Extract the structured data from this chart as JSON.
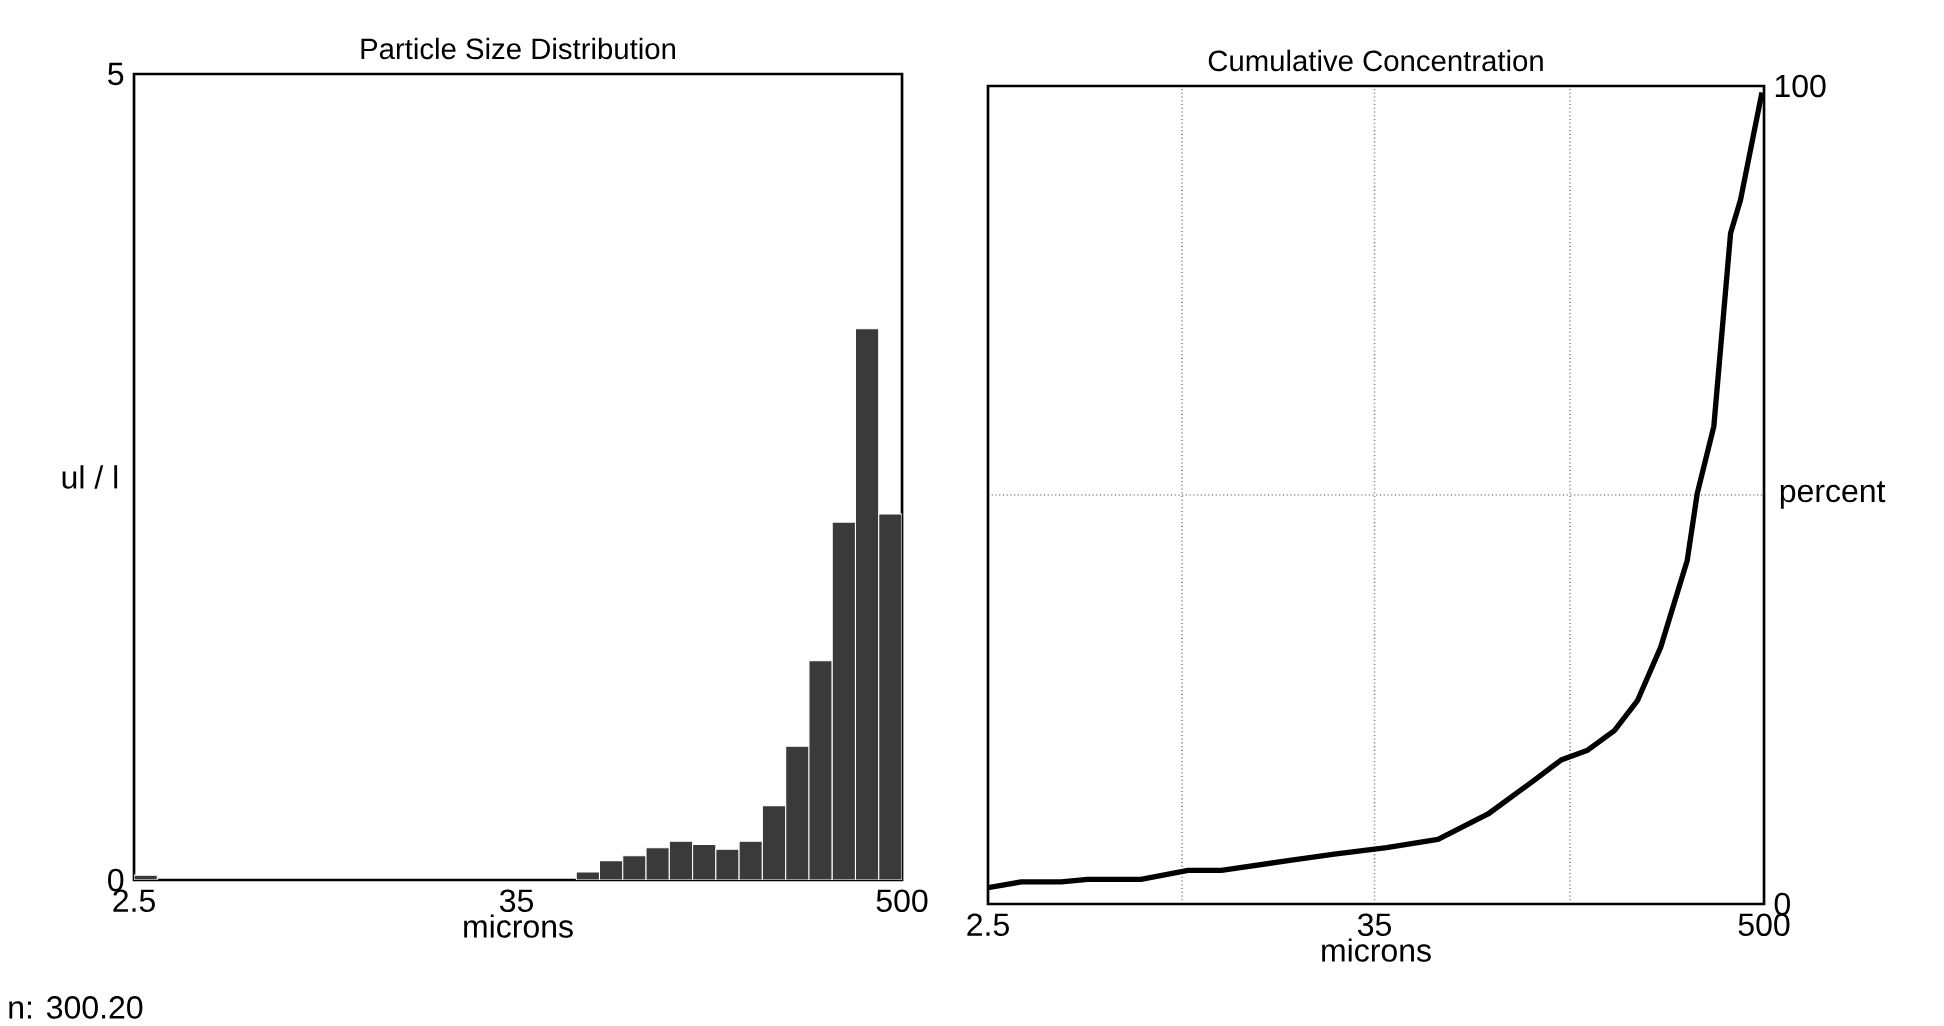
{
  "chart_data": [
    {
      "type": "histogram",
      "title": "Particle Size Distribution",
      "xlabel": "microns",
      "ylabel": "ul / l",
      "log": "x",
      "color": "#3a3a3a",
      "bins": [
        2.5,
        2.935,
        3.446,
        4.047,
        4.751,
        5.579,
        6.55,
        7.691,
        9.031,
        10.6,
        12.45,
        14.62,
        17.17,
        20.16,
        23.67,
        27.79,
        32.63,
        38.31,
        44.98,
        52.82,
        62.02,
        72.82,
        85.5,
        100.4,
        117.9,
        138.4,
        162.5,
        190.8,
        224.1,
        263.1,
        308.9,
        362.7,
        425.8,
        500
      ],
      "values": [
        0.03,
        0,
        0,
        0,
        0,
        0,
        0,
        0,
        0,
        0,
        0,
        0,
        0,
        0,
        0,
        0,
        0,
        0,
        0,
        0.05,
        0.12,
        0.15,
        0.2,
        0.24,
        0.22,
        0.19,
        0.24,
        0.46,
        0.83,
        1.36,
        2.22,
        3.42,
        2.27
      ],
      "xlim": [
        2.5,
        500
      ],
      "xticks": [
        2.5,
        35,
        500
      ],
      "ylim": [
        0,
        5
      ],
      "yticks": [
        0,
        5
      ],
      "annotations": [
        "n: 300.20"
      ]
    },
    {
      "type": "line",
      "title": "Cumulative Concentration",
      "xlabel": "microns",
      "ylabel": "percent",
      "log": "x",
      "grid": true,
      "color": "#000000",
      "x": [
        2.5,
        3.14,
        4.12,
        4.94,
        7.1,
        9.8,
        12.3,
        19.4,
        26.6,
        38,
        54,
        76,
        104,
        125,
        150,
        180,
        211,
        247,
        296,
        317,
        355,
        398,
        426,
        493
      ],
      "values": [
        2.0,
        2.7,
        2.7,
        3.0,
        3.0,
        4.1,
        4.1,
        5.3,
        6.1,
        6.9,
        7.9,
        11.0,
        15.1,
        17.6,
        18.8,
        21.2,
        24.9,
        31.4,
        42.0,
        50.2,
        58.4,
        82.0,
        86.1,
        99.2
      ],
      "xlim": [
        2.5,
        500
      ],
      "xticks": [
        2.5,
        {
          "value": 9.4,
          "label": null
        },
        35,
        {
          "value": 133,
          "label": null
        },
        500
      ],
      "ylim": [
        0,
        100
      ],
      "yticks": [
        0,
        {
          "value": 50,
          "label": null
        },
        100
      ]
    }
  ]
}
